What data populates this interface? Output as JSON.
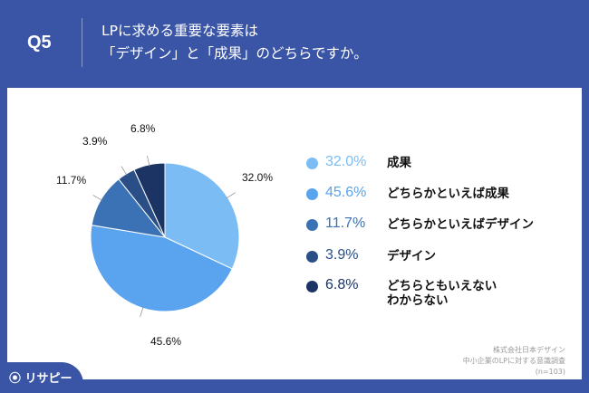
{
  "header": {
    "question": "Q5",
    "title_line1": "LPに求める重要な要素は",
    "title_line2": "「デザイン」と「成果」のどちらですか。"
  },
  "chart_data": {
    "type": "pie",
    "start": "top",
    "direction": "clockwise",
    "categories": [
      "成果",
      "どちらかといえば成果",
      "どちらかといえばデザイン",
      "デザイン",
      "どちらともいえない\nわからない"
    ],
    "values": [
      32.0,
      45.6,
      11.7,
      3.9,
      6.8
    ],
    "labels": [
      "32.0%",
      "45.6%",
      "11.7%",
      "3.9%",
      "6.8%"
    ],
    "colors": [
      "#7bbcf4",
      "#5aa3ef",
      "#3b72b6",
      "#2a4e86",
      "#1b3463"
    ],
    "legend_placement": "right"
  },
  "source": {
    "line1": "株式会社日本デザイン",
    "line2": "中小企業のLPに対する意識調査",
    "line3": "(n=103)"
  },
  "logo": "リサピー"
}
